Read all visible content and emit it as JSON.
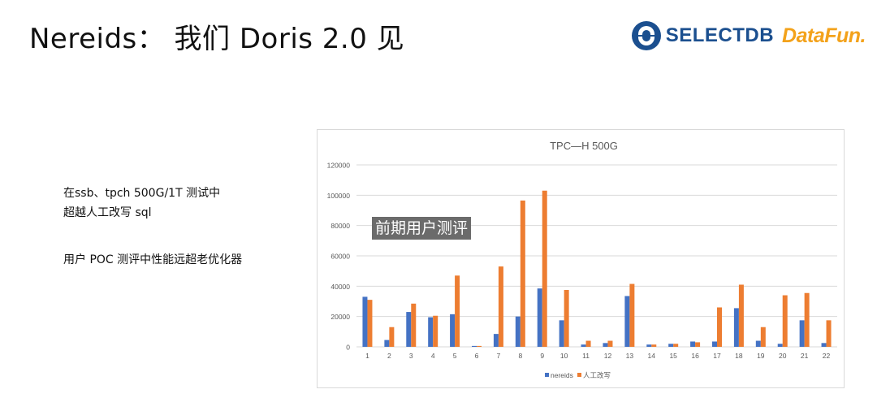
{
  "slide": {
    "title": "Nereids： 我们 Doris 2.0 见",
    "notes": [
      "在ssb、tpch 500G/1T 测试中",
      "超越人工改写 sql",
      "用户 POC 测评中性能远超老优化器"
    ],
    "overlay_label": "前期用户测评"
  },
  "logos": {
    "selectdb": "SELECTDB",
    "datafun": "DataFun."
  },
  "colors": {
    "nereids": "#4472c4",
    "manual": "#ed7d31",
    "gridline": "#d9d9d9",
    "logo_blue": "#1b4f8f",
    "logo_orange": "#f3a21b"
  },
  "chart_data": {
    "type": "bar",
    "title": "TPC—H 500G",
    "xlabel": "",
    "ylabel": "",
    "categories": [
      "1",
      "2",
      "3",
      "4",
      "5",
      "6",
      "7",
      "8",
      "9",
      "10",
      "11",
      "12",
      "13",
      "14",
      "15",
      "16",
      "17",
      "18",
      "19",
      "20",
      "21",
      "22"
    ],
    "series": [
      {
        "name": "nereids",
        "color": "#4472c4",
        "values": [
          33000,
          4500,
          23000,
          19500,
          21500,
          600,
          8500,
          20000,
          38500,
          17500,
          1500,
          2500,
          33500,
          1500,
          2000,
          3500,
          3500,
          25500,
          4000,
          2000,
          17500,
          2500
        ]
      },
      {
        "name": "人工改写",
        "color": "#ed7d31",
        "values": [
          31000,
          13000,
          28500,
          20500,
          47000,
          600,
          53000,
          96500,
          103000,
          37500,
          4000,
          4000,
          41500,
          1500,
          2000,
          3000,
          26000,
          41000,
          13000,
          34000,
          35500,
          17500
        ]
      }
    ],
    "ylim": [
      0,
      120000
    ],
    "yticks": [
      "0",
      "20000",
      "40000",
      "60000",
      "80000",
      "100000",
      "120000"
    ],
    "ytick_values": [
      0,
      20000,
      40000,
      60000,
      80000,
      100000,
      120000
    ],
    "grid": true,
    "legend_position": "bottom"
  }
}
